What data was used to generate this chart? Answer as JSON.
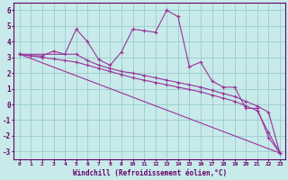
{
  "bg_color": "#c8eaea",
  "line_color": "#993399",
  "grid_color": "#99cccc",
  "xlabel": "Windchill (Refroidissement éolien,°C)",
  "xlabel_color": "#660066",
  "tick_color": "#660066",
  "xlim": [
    -0.5,
    23.5
  ],
  "ylim": [
    -3.5,
    6.5
  ],
  "yticks": [
    -3,
    -2,
    -1,
    0,
    1,
    2,
    3,
    4,
    5,
    6
  ],
  "xticks": [
    0,
    1,
    2,
    3,
    4,
    5,
    6,
    7,
    8,
    9,
    10,
    11,
    12,
    13,
    14,
    15,
    16,
    17,
    18,
    19,
    20,
    21,
    22,
    23
  ],
  "line1_x": [
    0,
    1,
    2,
    3,
    4,
    5,
    6,
    7,
    8,
    9,
    10,
    11,
    12,
    13,
    14,
    15,
    16,
    17,
    18,
    19,
    20,
    21,
    22,
    23
  ],
  "line1_y": [
    3.2,
    3.1,
    3.1,
    3.4,
    3.2,
    4.8,
    4.0,
    2.85,
    2.5,
    3.35,
    4.8,
    4.7,
    4.6,
    6.0,
    5.6,
    2.4,
    2.7,
    1.5,
    1.1,
    1.1,
    -0.25,
    -0.25,
    -2.1,
    -3.1
  ],
  "line2_x": [
    0,
    23
  ],
  "line2_y": [
    3.2,
    -3.1
  ],
  "line3_x": [
    0,
    5,
    6,
    7,
    8,
    9,
    10,
    11,
    12,
    13,
    14,
    15,
    16,
    17,
    18,
    19,
    20,
    21,
    22,
    23
  ],
  "line3_y": [
    3.2,
    3.2,
    2.8,
    2.5,
    2.3,
    2.1,
    2.0,
    1.85,
    1.7,
    1.55,
    1.4,
    1.25,
    1.1,
    0.9,
    0.7,
    0.5,
    0.2,
    -0.1,
    -0.5,
    -3.1
  ],
  "line4_x": [
    0,
    1,
    2,
    3,
    4,
    5,
    6,
    7,
    8,
    9,
    10,
    11,
    12,
    13,
    14,
    15,
    16,
    17,
    18,
    19,
    20,
    21,
    22,
    23
  ],
  "line4_y": [
    3.2,
    3.1,
    3.0,
    2.9,
    2.8,
    2.7,
    2.5,
    2.3,
    2.1,
    1.9,
    1.7,
    1.55,
    1.4,
    1.25,
    1.1,
    0.95,
    0.8,
    0.6,
    0.4,
    0.2,
    -0.1,
    -0.4,
    -1.8,
    -3.1
  ],
  "marker": "+"
}
